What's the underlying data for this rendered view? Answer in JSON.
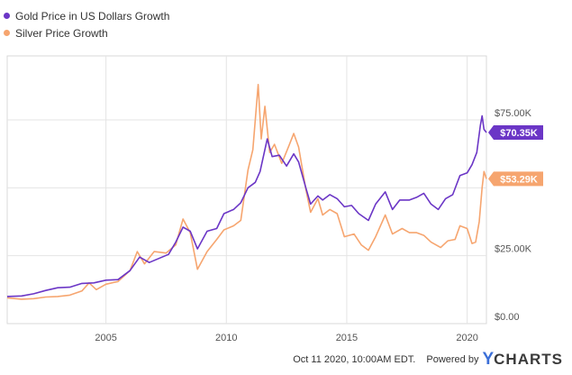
{
  "legend": [
    {
      "label": "Gold Price in US Dollars Growth",
      "color": "#6b36c6"
    },
    {
      "label": "Silver Price Growth",
      "color": "#f6a56f"
    }
  ],
  "chart_data": {
    "type": "line",
    "title": "",
    "xlabel": "",
    "ylabel": "",
    "xlim": [
      2000.9,
      2020.8
    ],
    "ylim": [
      0,
      100000
    ],
    "x_ticks": [
      2005,
      2010,
      2015,
      2020
    ],
    "x_tick_labels": [
      "2005",
      "2010",
      "2015",
      "2020"
    ],
    "y_ticks": [
      0,
      25000,
      50000,
      75000
    ],
    "y_tick_labels": [
      "$0.00",
      "$25.00K",
      "",
      "$75.00K"
    ],
    "grid": true,
    "legend_position": "top-left",
    "series": [
      {
        "name": "Gold Price in US Dollars Growth",
        "color": "#6b36c6",
        "end_label": "$70.35K",
        "points": [
          [
            2000.9,
            10000
          ],
          [
            2001.5,
            10200
          ],
          [
            2002.0,
            11000
          ],
          [
            2002.5,
            12200
          ],
          [
            2003.0,
            13200
          ],
          [
            2003.5,
            13400
          ],
          [
            2004.0,
            14800
          ],
          [
            2004.5,
            15000
          ],
          [
            2005.0,
            16000
          ],
          [
            2005.5,
            16200
          ],
          [
            2006.0,
            19500
          ],
          [
            2006.4,
            24500
          ],
          [
            2006.8,
            22500
          ],
          [
            2007.2,
            24000
          ],
          [
            2007.6,
            25500
          ],
          [
            2007.9,
            30000
          ],
          [
            2008.2,
            35500
          ],
          [
            2008.5,
            34000
          ],
          [
            2008.8,
            27500
          ],
          [
            2009.2,
            34000
          ],
          [
            2009.6,
            35000
          ],
          [
            2009.9,
            40500
          ],
          [
            2010.3,
            42000
          ],
          [
            2010.6,
            44500
          ],
          [
            2010.9,
            50000
          ],
          [
            2011.2,
            52000
          ],
          [
            2011.4,
            56000
          ],
          [
            2011.7,
            68000
          ],
          [
            2011.9,
            61500
          ],
          [
            2012.2,
            62000
          ],
          [
            2012.5,
            58000
          ],
          [
            2012.8,
            62500
          ],
          [
            2013.0,
            59500
          ],
          [
            2013.3,
            50000
          ],
          [
            2013.5,
            44000
          ],
          [
            2013.8,
            47000
          ],
          [
            2014.0,
            45500
          ],
          [
            2014.3,
            47500
          ],
          [
            2014.6,
            46000
          ],
          [
            2014.9,
            43000
          ],
          [
            2015.2,
            43500
          ],
          [
            2015.5,
            40500
          ],
          [
            2015.9,
            38000
          ],
          [
            2016.2,
            44000
          ],
          [
            2016.6,
            48500
          ],
          [
            2016.9,
            42000
          ],
          [
            2017.2,
            45500
          ],
          [
            2017.6,
            45500
          ],
          [
            2017.9,
            46500
          ],
          [
            2018.2,
            48000
          ],
          [
            2018.5,
            44000
          ],
          [
            2018.8,
            42000
          ],
          [
            2019.1,
            46000
          ],
          [
            2019.4,
            47500
          ],
          [
            2019.7,
            54500
          ],
          [
            2020.0,
            55500
          ],
          [
            2020.2,
            58500
          ],
          [
            2020.4,
            63000
          ],
          [
            2020.55,
            73000
          ],
          [
            2020.62,
            76500
          ],
          [
            2020.7,
            71500
          ],
          [
            2020.8,
            70350
          ]
        ]
      },
      {
        "name": "Silver Price Growth",
        "color": "#f6a56f",
        "end_label": "$53.29K",
        "points": [
          [
            2000.9,
            9500
          ],
          [
            2001.5,
            9000
          ],
          [
            2002.0,
            9200
          ],
          [
            2002.5,
            9800
          ],
          [
            2003.0,
            10000
          ],
          [
            2003.5,
            10500
          ],
          [
            2004.0,
            12000
          ],
          [
            2004.3,
            15000
          ],
          [
            2004.6,
            12500
          ],
          [
            2005.0,
            14500
          ],
          [
            2005.5,
            15500
          ],
          [
            2006.0,
            19500
          ],
          [
            2006.3,
            26500
          ],
          [
            2006.6,
            22000
          ],
          [
            2007.0,
            26500
          ],
          [
            2007.5,
            26000
          ],
          [
            2007.9,
            29000
          ],
          [
            2008.2,
            38500
          ],
          [
            2008.5,
            33500
          ],
          [
            2008.8,
            20000
          ],
          [
            2009.2,
            26500
          ],
          [
            2009.6,
            31000
          ],
          [
            2009.9,
            34500
          ],
          [
            2010.3,
            36000
          ],
          [
            2010.6,
            38000
          ],
          [
            2010.9,
            56500
          ],
          [
            2011.1,
            64000
          ],
          [
            2011.32,
            88000
          ],
          [
            2011.45,
            68000
          ],
          [
            2011.6,
            80000
          ],
          [
            2011.8,
            63000
          ],
          [
            2012.0,
            66000
          ],
          [
            2012.3,
            59000
          ],
          [
            2012.6,
            65500
          ],
          [
            2012.8,
            70000
          ],
          [
            2013.0,
            65000
          ],
          [
            2013.3,
            49500
          ],
          [
            2013.5,
            41000
          ],
          [
            2013.8,
            46000
          ],
          [
            2014.0,
            40000
          ],
          [
            2014.3,
            42000
          ],
          [
            2014.6,
            40500
          ],
          [
            2014.9,
            32000
          ],
          [
            2015.3,
            33000
          ],
          [
            2015.6,
            29000
          ],
          [
            2015.9,
            27000
          ],
          [
            2016.2,
            32000
          ],
          [
            2016.6,
            40000
          ],
          [
            2016.9,
            33000
          ],
          [
            2017.3,
            35000
          ],
          [
            2017.6,
            33500
          ],
          [
            2017.9,
            33500
          ],
          [
            2018.2,
            32500
          ],
          [
            2018.5,
            30000
          ],
          [
            2018.9,
            28000
          ],
          [
            2019.2,
            30500
          ],
          [
            2019.5,
            31000
          ],
          [
            2019.7,
            36000
          ],
          [
            2020.0,
            35000
          ],
          [
            2020.2,
            29500
          ],
          [
            2020.35,
            30000
          ],
          [
            2020.5,
            37500
          ],
          [
            2020.62,
            50000
          ],
          [
            2020.7,
            56000
          ],
          [
            2020.8,
            53290
          ]
        ]
      }
    ]
  },
  "footer": {
    "timestamp": "Oct 11 2020, 10:00AM EDT.",
    "powered_by": "Powered by",
    "brand_y": "Y",
    "brand_rest": "CHARTS"
  }
}
